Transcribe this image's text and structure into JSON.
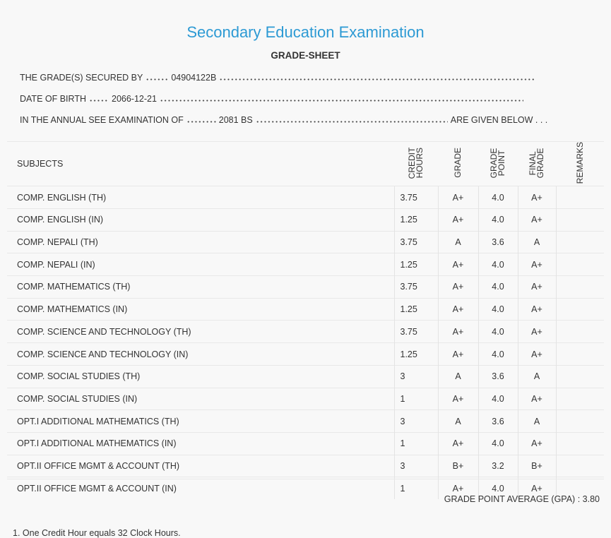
{
  "header": {
    "title": "Secondary Education Examination",
    "subtitle": "GRADE-SHEET"
  },
  "info": [
    {
      "label": "THE GRADE(S) SECURED BY",
      "value": "04904122B"
    },
    {
      "label": "DATE OF BIRTH",
      "value": "2066-12-21"
    },
    {
      "label": "IN THE ANNUAL SEE EXAMINATION OF",
      "value": "2081 BS",
      "suffix": "ARE GIVEN BELOW . . ."
    }
  ],
  "table": {
    "columns": [
      "SUBJECTS",
      "CREDIT HOURS",
      "GRADE",
      "GRADE POINT",
      "FINAL GRADE",
      "REMARKS"
    ],
    "rows": [
      [
        "COMP. ENGLISH (TH)",
        "3.75",
        "A+",
        "4.0",
        "A+"
      ],
      [
        "COMP. ENGLISH (IN)",
        "1.25",
        "A+",
        "4.0",
        "A+"
      ],
      [
        "COMP. NEPALI (TH)",
        "3.75",
        "A",
        "3.6",
        "A"
      ],
      [
        "COMP. NEPALI (IN)",
        "1.25",
        "A+",
        "4.0",
        "A+"
      ],
      [
        "COMP. MATHEMATICS (TH)",
        "3.75",
        "A+",
        "4.0",
        "A+"
      ],
      [
        "COMP. MATHEMATICS (IN)",
        "1.25",
        "A+",
        "4.0",
        "A+"
      ],
      [
        "COMP. SCIENCE AND TECHNOLOGY (TH)",
        "3.75",
        "A+",
        "4.0",
        "A+"
      ],
      [
        "COMP. SCIENCE AND TECHNOLOGY (IN)",
        "1.25",
        "A+",
        "4.0",
        "A+"
      ],
      [
        "COMP. SOCIAL STUDIES (TH)",
        "3",
        "A",
        "3.6",
        "A"
      ],
      [
        "COMP. SOCIAL STUDIES (IN)",
        "1",
        "A+",
        "4.0",
        "A+"
      ],
      [
        "OPT.I ADDITIONAL MATHEMATICS (TH)",
        "3",
        "A",
        "3.6",
        "A"
      ],
      [
        "OPT.I ADDITIONAL MATHEMATICS (IN)",
        "1",
        "A+",
        "4.0",
        "A+"
      ],
      [
        "OPT.II OFFICE MGMT & ACCOUNT (TH)",
        "3",
        "B+",
        "3.2",
        "B+"
      ],
      [
        "OPT.II OFFICE MGMT & ACCOUNT (IN)",
        "1",
        "A+",
        "4.0",
        "A+"
      ]
    ]
  },
  "gpa": {
    "label": "GRADE POINT AVERAGE (GPA) :",
    "value": "3.80"
  },
  "note": "1. One Credit Hour equals 32 Clock Hours."
}
